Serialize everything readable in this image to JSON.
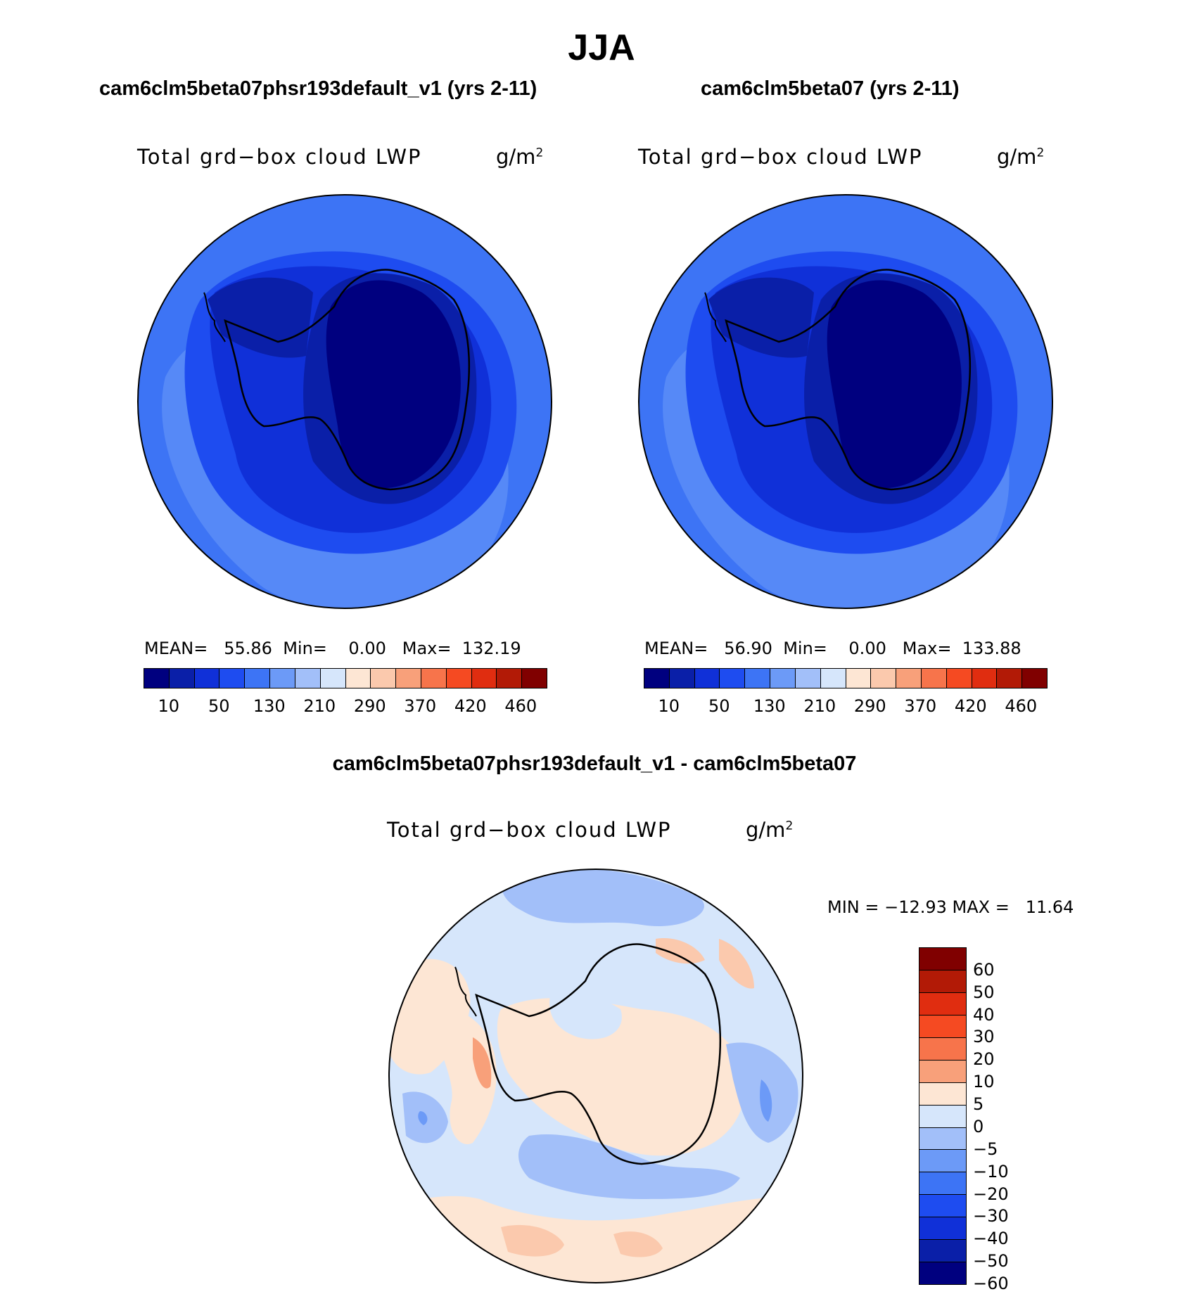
{
  "figure": {
    "title": "JJA"
  },
  "panels": [
    {
      "title": "cam6clm5beta07phsr193default_v1 (yrs 2-11)",
      "variable": "Total grd−box cloud LWP",
      "unit": "g/m",
      "unit_sup": "2",
      "stats": "MEAN=   55.86  Min=    0.00   Max=  132.19"
    },
    {
      "title": "cam6clm5beta07 (yrs 2-11)",
      "variable": "Total grd−box cloud LWP",
      "unit": "g/m",
      "unit_sup": "2",
      "stats": "MEAN=   56.90  Min=    0.00   Max=  133.88"
    },
    {
      "title": "cam6clm5beta07phsr193default_v1 - cam6clm5beta07",
      "variable": "Total grd−box cloud LWP",
      "unit": "g/m",
      "unit_sup": "2",
      "stats": "MIN = −12.93 MAX =   11.64"
    }
  ],
  "colorbars": {
    "abs_colors": [
      "#00007f",
      "#0a1fa8",
      "#1030d8",
      "#1e4cf0",
      "#3d74f5",
      "#6c9af7",
      "#a2bff9",
      "#d6e6fb",
      "#fde6d4",
      "#fbc9ad",
      "#f8a07a",
      "#f7744b",
      "#f54a22",
      "#e02d10",
      "#b21a06",
      "#800000"
    ],
    "abs_ticks": [
      "10",
      "50",
      "130",
      "210",
      "290",
      "370",
      "420",
      "460"
    ],
    "diff_colors": [
      "#800000",
      "#b21a06",
      "#e02d10",
      "#f54a22",
      "#f7744b",
      "#f8a07a",
      "#fde6d4",
      "#d6e6fb",
      "#a2bff9",
      "#6c9af7",
      "#3d74f5",
      "#1e4cf0",
      "#1030d8",
      "#0a1fa8",
      "#00007f"
    ],
    "diff_ticks": [
      "60",
      "50",
      "40",
      "30",
      "20",
      "10",
      "5",
      "0",
      "−5",
      "−10",
      "−20",
      "−30",
      "−40",
      "−50",
      "−60"
    ]
  },
  "map": {
    "projection": "south polar stereographic",
    "abs_field_colors": {
      "ocean_far": "#3d74f5",
      "ocean_mid": "#1e4cf0",
      "coast": "#1030d8",
      "interior": "#0a1fa8",
      "plateau": "#00007f",
      "outer_band": "#6c9af7"
    },
    "diff_field_colors": {
      "neutral_neg": "#d6e6fb",
      "neutral_pos": "#fde6d4",
      "neg": "#a2bff9",
      "pos": "#fbc9ad",
      "strong_neg": "#6c9af7",
      "strong_pos": "#f8a07a"
    }
  }
}
